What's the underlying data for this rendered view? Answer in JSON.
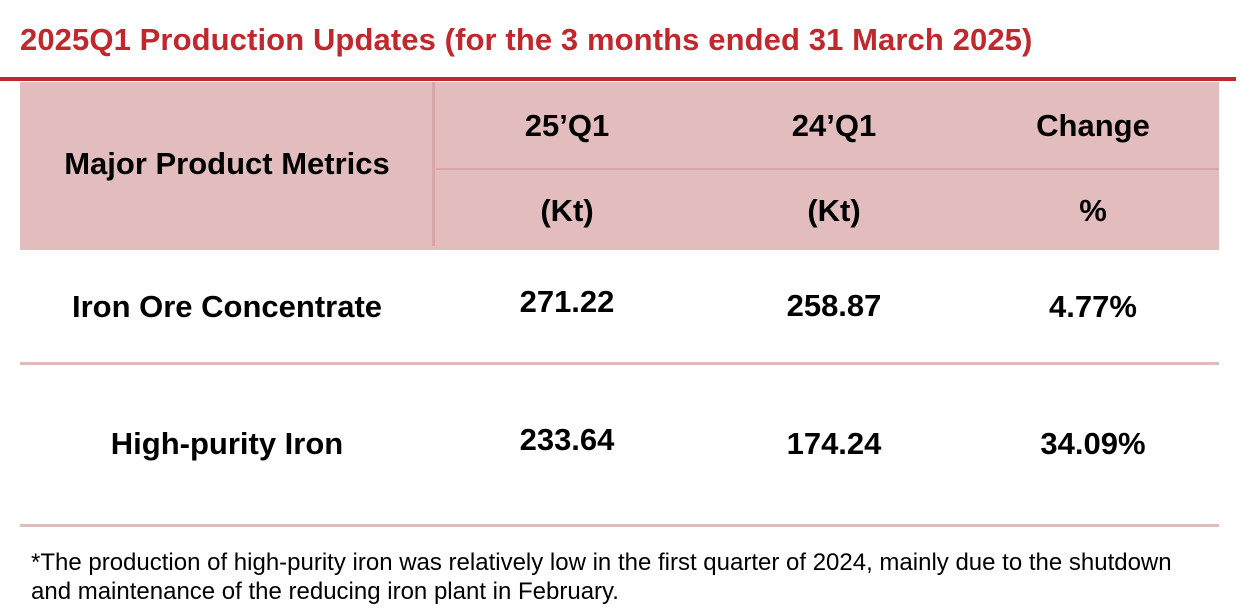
{
  "title": "2025Q1 Production Updates (for the 3 months ended 31 March 2025)",
  "colors": {
    "title_red": "#c0282d",
    "header_band": "#e3bcbd",
    "row_rule": "#ddbcbc"
  },
  "table": {
    "metric_header": "Major Product Metrics",
    "columns": [
      {
        "label": "25’Q1",
        "unit": "(Kt)"
      },
      {
        "label": "24’Q1",
        "unit": "(Kt)"
      },
      {
        "label": "Change",
        "unit": "%"
      }
    ],
    "rows": [
      {
        "metric": "Iron Ore Concentrate",
        "q1_2025": "271.22",
        "q1_2024": "258.87",
        "change": "4.77%"
      },
      {
        "metric": "High-purity Iron",
        "q1_2025": "233.64",
        "q1_2024": "174.24",
        "change": "34.09%"
      }
    ]
  },
  "footnote": "*The production of high-purity iron was relatively low in the first quarter of 2024, mainly due to the shutdown and maintenance of the reducing iron plant in February."
}
